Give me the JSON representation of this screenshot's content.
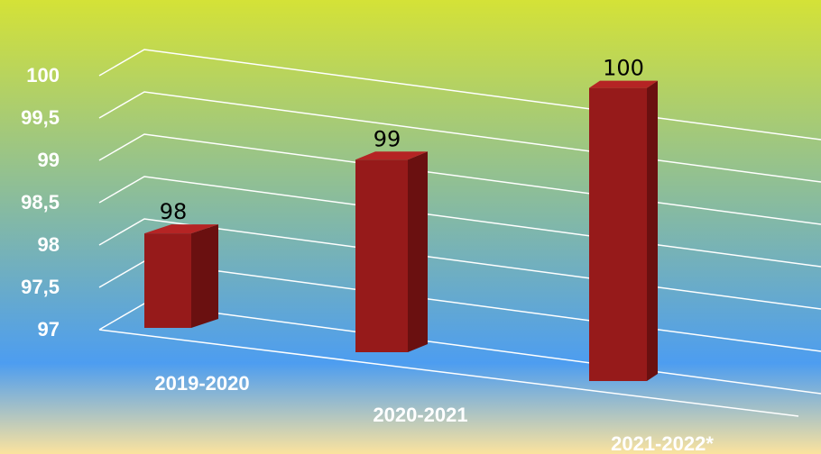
{
  "chart_data": {
    "type": "bar",
    "categories": [
      "2019-2020",
      "2020-2021",
      "2021-2022*"
    ],
    "values": [
      98,
      99,
      100
    ],
    "data_labels": [
      "98",
      "99",
      "100"
    ],
    "y_ticks": [
      "97",
      "97,5",
      "98",
      "98,5",
      "99",
      "99,5",
      "100"
    ],
    "ylim": [
      97,
      100
    ],
    "grid": true,
    "style": "3d-column",
    "colors": {
      "bar_front": "#961a1a",
      "bar_side": "#6a1010",
      "bar_top": "#b52424",
      "background_top": "#d4e237",
      "background_middle": "#4d9df0",
      "background_bottom": "#fbe39e"
    }
  }
}
